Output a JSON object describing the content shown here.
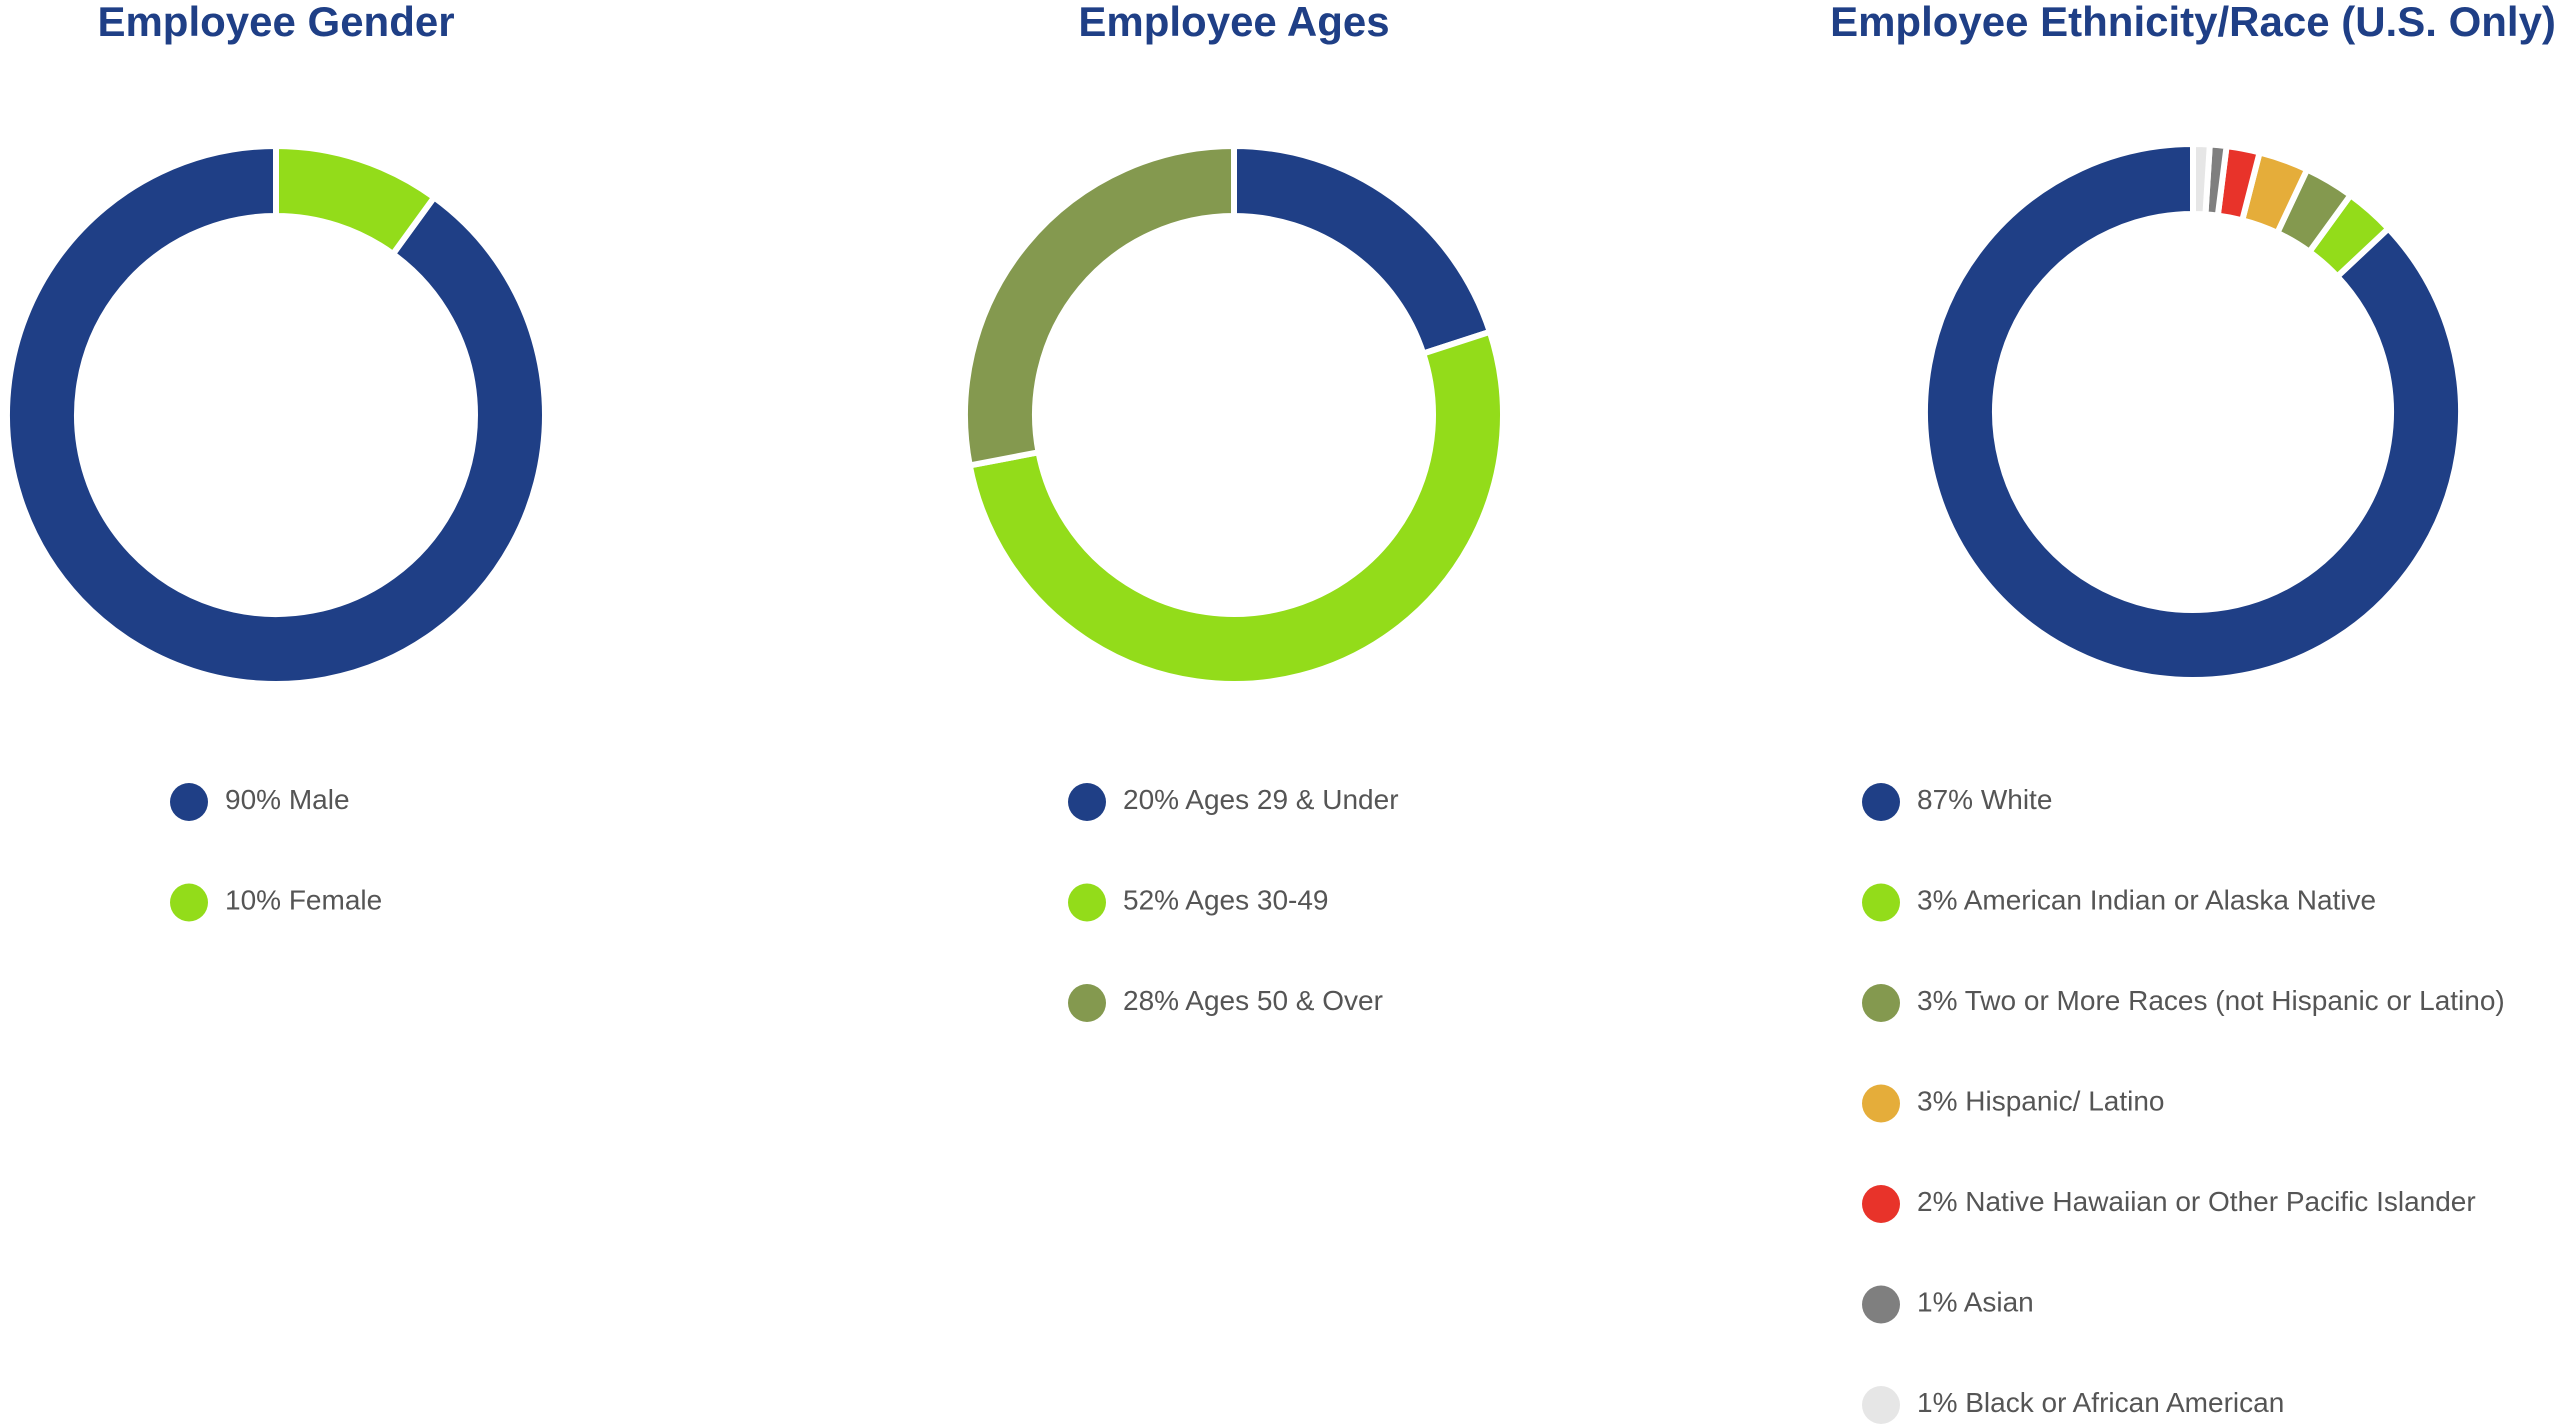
{
  "chart_data": [
    {
      "type": "pie",
      "donut": true,
      "direction": "counterclockwise",
      "title": "Employee Gender",
      "categories": [
        "Male",
        "Female"
      ],
      "values": [
        90,
        10
      ],
      "value_labels": [
        "90%",
        "10%"
      ],
      "colors": [
        "#1f3f86",
        "#93dc1a"
      ]
    },
    {
      "type": "pie",
      "donut": true,
      "direction": "clockwise",
      "title": "Employee Ages",
      "categories": [
        "Ages 29 & Under",
        "Ages 30-49",
        "Ages 50 & Over"
      ],
      "values": [
        20,
        52,
        28
      ],
      "value_labels": [
        "20%",
        "52%",
        "28%"
      ],
      "colors": [
        "#1f3f86",
        "#93dc1a",
        "#84994f"
      ]
    },
    {
      "type": "pie",
      "donut": true,
      "direction": "counterclockwise",
      "title": "Employee Ethnicity/Race (U.S. Only)",
      "categories": [
        "White",
        "American Indian or Alaska Native",
        "Two or More Races (not Hispanic or Latino)",
        "Hispanic/ Latino",
        "Native Hawaiian or Other Pacific Islander",
        "Asian",
        "Black or African American"
      ],
      "values": [
        87,
        3,
        3,
        3,
        2,
        1,
        1
      ],
      "value_labels": [
        "87%",
        "3%",
        "3%",
        "3%",
        "2%",
        "1%",
        "1%"
      ],
      "colors": [
        "#1f3f86",
        "#93dc1a",
        "#84994f",
        "#e5ad3a",
        "#e8332a",
        "#7f7f7f",
        "#e6e6e6"
      ]
    }
  ]
}
